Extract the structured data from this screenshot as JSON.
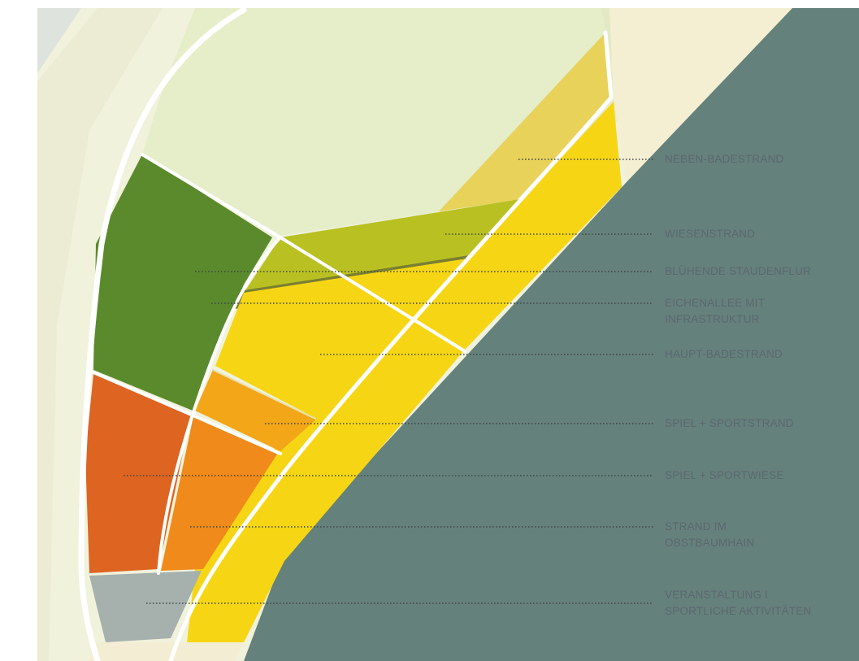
{
  "legend": [
    {
      "id": "neben-badestrand",
      "lines": [
        "NEBEN-BADESTRAND"
      ],
      "color": "#e8d25a"
    },
    {
      "id": "wiesenstrand",
      "lines": [
        "WIESENSTRAND"
      ],
      "color": "#b9c122"
    },
    {
      "id": "bluehende-staudenflur",
      "lines": [
        "BLÜHENDE STAUDENFLUR"
      ],
      "color": "#5b8a2c"
    },
    {
      "id": "eichenallee",
      "lines": [
        "EICHENALLEE MIT",
        "INFRASTRUKTUR"
      ],
      "color": "#7a8030"
    },
    {
      "id": "haupt-badestrand",
      "lines": [
        "HAUPT-BADESTRAND"
      ],
      "color": "#f6d614"
    },
    {
      "id": "spiel-sportstrand",
      "lines": [
        "SPIEL + SPORTSTRAND"
      ],
      "color": "#f2a618"
    },
    {
      "id": "spiel-sportwiese",
      "lines": [
        "SPIEL + SPORTWIESE"
      ],
      "color": "#de6421"
    },
    {
      "id": "strand-obstbaumhain",
      "lines": [
        "STRAND IM",
        "OBSTBAUMHAIN"
      ],
      "color": "#f08a1a"
    },
    {
      "id": "veranstaltung",
      "lines": [
        "VERANSTALTUNG I",
        "SPORTLICHE AKTIVITÄTEN"
      ],
      "color": "#a6b0ad"
    }
  ],
  "colors": {
    "water": "#65817b",
    "background_light": "#eef1d8",
    "path": "#ffffff",
    "leader_line": "#3c4448"
  }
}
